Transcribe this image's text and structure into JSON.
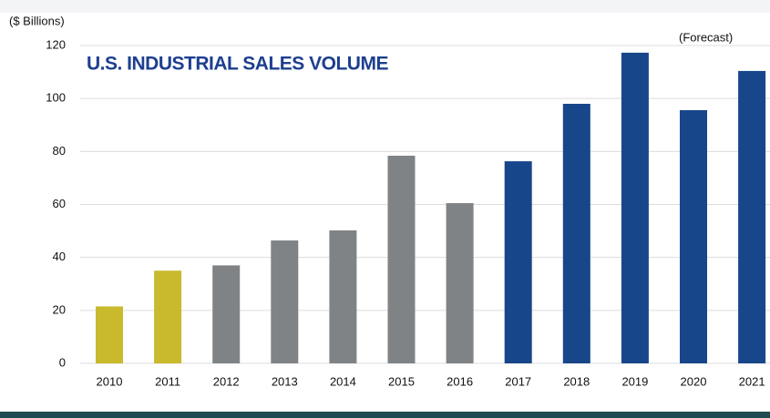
{
  "chart_data": {
    "type": "bar",
    "title": "U.S. INDUSTRIAL SALES VOLUME",
    "y_label": "($ Billions)",
    "annotation": "(Forecast)",
    "categories": [
      "2010",
      "2011",
      "2012",
      "2013",
      "2014",
      "2015",
      "2016",
      "2017",
      "2018",
      "2019",
      "2020",
      "2021"
    ],
    "values": [
      21.5,
      35,
      37,
      46.4,
      50.2,
      78.4,
      60.5,
      76.3,
      98,
      117.3,
      95.6,
      110.4
    ],
    "colors": [
      "#c9b92c",
      "#c9b92c",
      "#808385",
      "#808385",
      "#808385",
      "#808385",
      "#808385",
      "#17468a",
      "#17468a",
      "#17468a",
      "#17468a",
      "#17468a"
    ],
    "ylim": [
      0,
      120
    ],
    "yticks": [
      0,
      20,
      40,
      60,
      80,
      100,
      120
    ],
    "grid": true
  }
}
